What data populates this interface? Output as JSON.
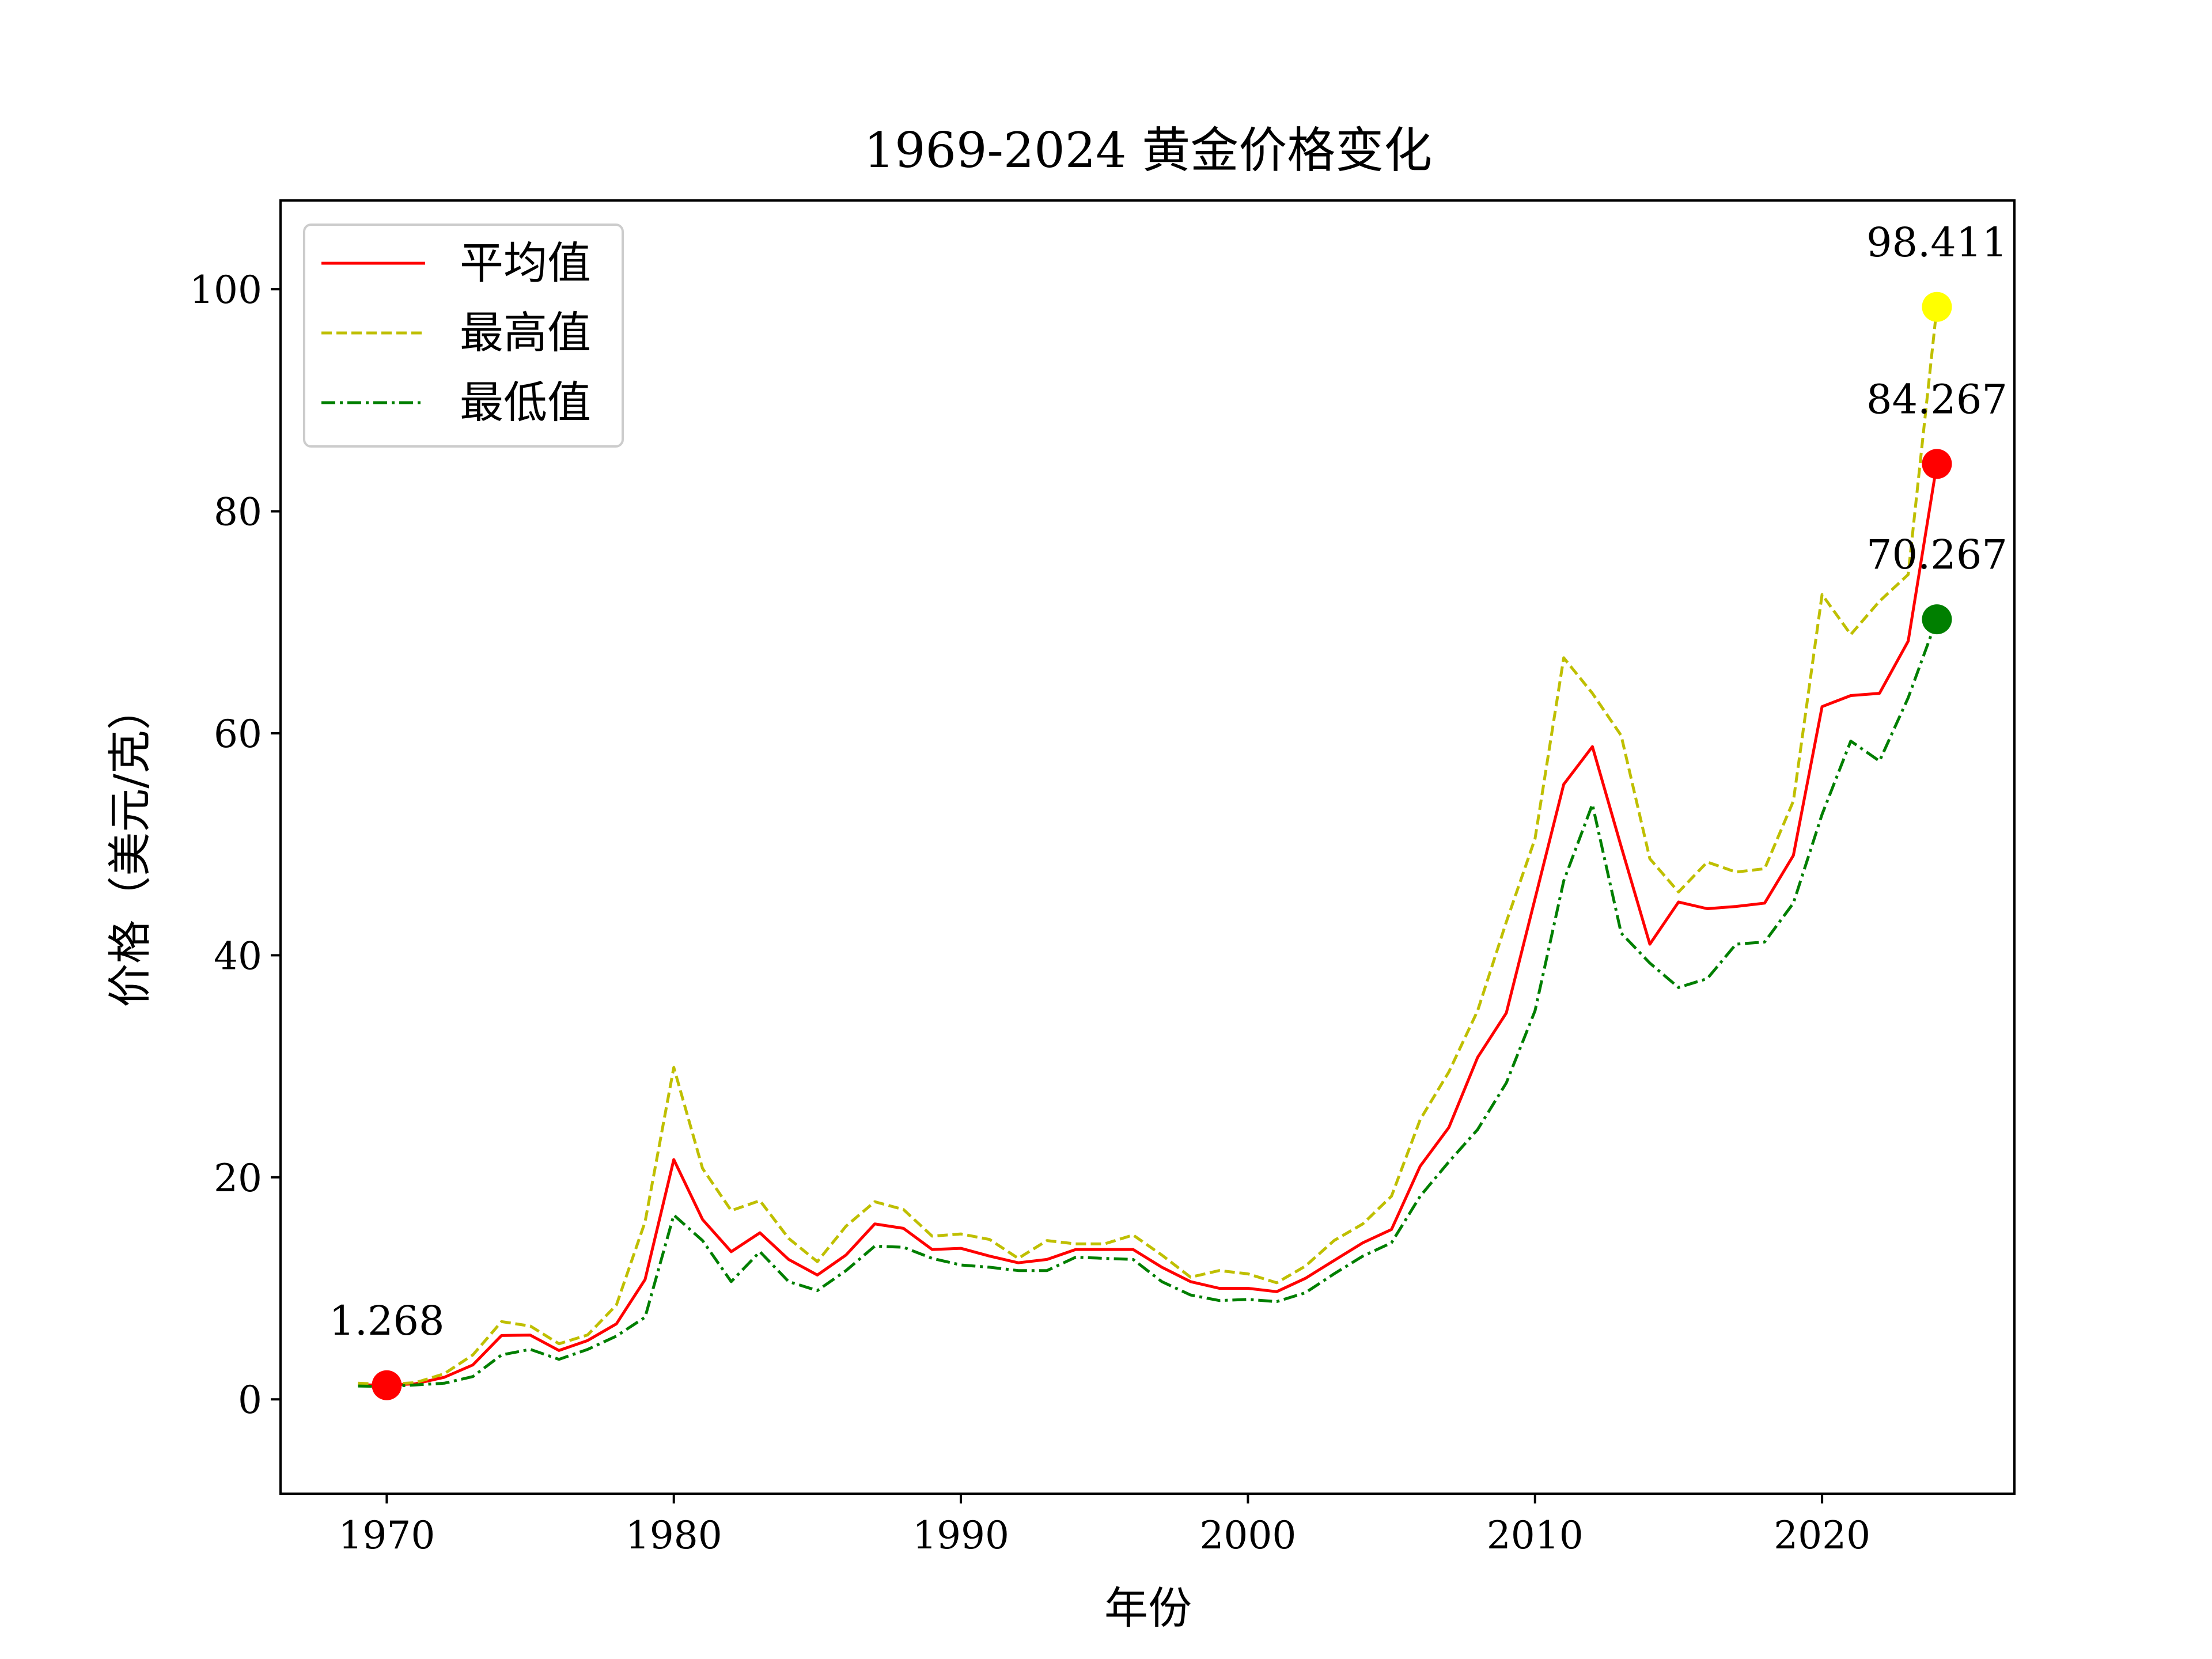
{
  "chart_data": {
    "type": "line",
    "title": "1969-2024 黄金价格变化",
    "xlabel": "年份",
    "ylabel": "价格（美元/克）",
    "xlim": [
      1966.3,
      2026.7
    ],
    "ylim": [
      -8.5,
      108
    ],
    "xticks": [
      1970,
      1980,
      1990,
      2000,
      2010,
      2020
    ],
    "yticks": [
      0,
      20,
      40,
      60,
      80,
      100
    ],
    "grid": false,
    "legend": {
      "placement": "top-left"
    },
    "x": [
      1969,
      1970,
      1971,
      1972,
      1973,
      1974,
      1975,
      1976,
      1977,
      1978,
      1979,
      1980,
      1981,
      1982,
      1983,
      1984,
      1985,
      1986,
      1987,
      1988,
      1989,
      1990,
      1991,
      1992,
      1993,
      1994,
      1995,
      1996,
      1997,
      1998,
      1999,
      2000,
      2001,
      2002,
      2003,
      2004,
      2005,
      2006,
      2007,
      2008,
      2009,
      2010,
      2011,
      2012,
      2013,
      2014,
      2015,
      2016,
      2017,
      2018,
      2019,
      2020,
      2021,
      2022,
      2023,
      2024
    ],
    "series": [
      {
        "name": "平均值",
        "color": "#ff0000",
        "dash": "solid",
        "values": [
          1.32,
          1.268,
          1.4,
          1.98,
          3.1,
          5.75,
          5.78,
          4.4,
          5.3,
          6.8,
          10.8,
          21.6,
          16.2,
          13.3,
          15.0,
          12.6,
          11.2,
          13.0,
          15.8,
          15.4,
          13.5,
          13.6,
          12.9,
          12.3,
          12.6,
          13.5,
          13.5,
          13.5,
          11.9,
          10.6,
          10.0,
          10.0,
          9.7,
          10.9,
          12.5,
          14.1,
          15.3,
          21.0,
          24.5,
          30.8,
          34.8,
          45.1,
          55.4,
          58.8,
          49.8,
          41.0,
          44.8,
          44.2,
          44.4,
          44.7,
          49.0,
          62.4,
          63.4,
          63.6,
          68.3,
          84.267
        ]
      },
      {
        "name": "最高值",
        "color": "#bfbf00",
        "dash": "dashed",
        "values": [
          1.45,
          1.35,
          1.5,
          2.3,
          4.0,
          7.0,
          6.6,
          5.0,
          5.8,
          8.5,
          16.0,
          29.9,
          20.8,
          17.0,
          17.9,
          14.5,
          12.4,
          15.6,
          17.8,
          17.1,
          14.7,
          14.9,
          14.4,
          12.7,
          14.3,
          14.0,
          14.0,
          14.8,
          13.0,
          11.0,
          11.6,
          11.3,
          10.5,
          12.0,
          14.3,
          15.8,
          18.3,
          25.2,
          29.5,
          35.0,
          43.0,
          50.5,
          66.8,
          63.6,
          59.8,
          48.7,
          45.7,
          48.4,
          47.5,
          47.8,
          53.9,
          72.5,
          68.9,
          71.9,
          74.3,
          98.411
        ]
      },
      {
        "name": "最低值",
        "color": "#007f00",
        "dash": "dashdot",
        "values": [
          1.2,
          1.15,
          1.3,
          1.45,
          2.05,
          4.0,
          4.5,
          3.6,
          4.5,
          5.7,
          7.4,
          16.6,
          14.3,
          10.6,
          13.3,
          10.6,
          9.8,
          11.6,
          13.8,
          13.7,
          12.7,
          12.1,
          11.9,
          11.6,
          11.6,
          12.8,
          12.7,
          12.6,
          10.6,
          9.4,
          8.9,
          9.0,
          8.8,
          9.6,
          11.3,
          12.9,
          14.1,
          18.3,
          21.4,
          24.3,
          28.5,
          35.0,
          46.7,
          53.6,
          42.0,
          39.3,
          37.1,
          37.9,
          41.0,
          41.2,
          44.7,
          52.7,
          59.3,
          57.5,
          63.2,
          70.267
        ]
      }
    ],
    "highlights": [
      {
        "x": 1970,
        "y": 1.268,
        "label": "1.268",
        "color": "#ff0000"
      },
      {
        "x": 2024,
        "y": 98.411,
        "label": "98.411",
        "color": "#ffff00"
      },
      {
        "x": 2024,
        "y": 84.267,
        "label": "84.267",
        "color": "#ff0000"
      },
      {
        "x": 2024,
        "y": 70.267,
        "label": "70.267",
        "color": "#007f00"
      }
    ]
  }
}
